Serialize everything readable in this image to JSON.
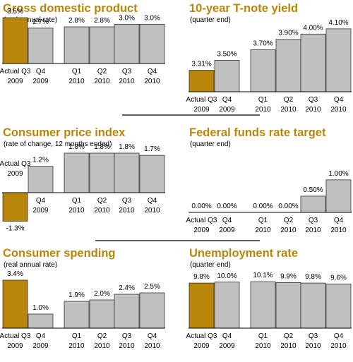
{
  "colors": {
    "actual": "#b8860b",
    "projected": "#c0c0c0",
    "title": "#b8860b"
  },
  "chart_data": [
    {
      "type": "bar",
      "title": "Gross domestic product",
      "subtitle": "(real annual rate)",
      "categories": [
        "Actual Q3 2009",
        "Q4 2009",
        "Q1 2010",
        "Q2 2010",
        "Q3 2010",
        "Q4 2010"
      ],
      "x_tick_line1": [
        "Actual Q3",
        "Q4",
        "Q1",
        "Q2",
        "Q3",
        "Q4"
      ],
      "x_tick_line2": [
        "2009",
        "2009",
        "2010",
        "2010",
        "2010",
        "2010"
      ],
      "values": [
        3.5,
        2.7,
        2.8,
        2.8,
        3.0,
        3.0
      ],
      "value_labels": [
        "3.5%",
        "2.7%",
        "2.8%",
        "2.8%",
        "3.0%",
        "3.0%"
      ],
      "ylim": [
        0,
        4.2
      ]
    },
    {
      "type": "bar",
      "title": "10-year T-note yield",
      "subtitle": "(quarter end)",
      "categories": [
        "Actual Q3 2009",
        "Q4 2009",
        "Q1 2010",
        "Q2 2010",
        "Q3 2010",
        "Q4 2010"
      ],
      "x_tick_line1": [
        "Actual Q3",
        "Q4",
        "Q1",
        "Q2",
        "Q3",
        "Q4"
      ],
      "x_tick_line2": [
        "2009",
        "2009",
        "2010",
        "2010",
        "2010",
        "2010"
      ],
      "values": [
        3.31,
        3.5,
        3.7,
        3.9,
        4.0,
        4.1
      ],
      "value_labels": [
        "3.31%",
        "3.50%",
        "3.70%",
        "3.90%",
        "4.00%",
        "4.10%"
      ],
      "ylim": [
        2.9,
        4.3
      ]
    },
    {
      "type": "bar",
      "title": "Consumer price index",
      "subtitle": "(rate of change, 12 months ended)",
      "categories": [
        "Actual Q3 2009",
        "Q4 2009",
        "Q1 2010",
        "Q2 2010",
        "Q3 2010",
        "Q4 2010"
      ],
      "x_tick_line1": [
        "Actual Q3",
        "Q4",
        "Q1",
        "Q2",
        "Q3",
        "Q4"
      ],
      "x_tick_line2": [
        "2009",
        "2009",
        "2010",
        "2010",
        "2010",
        "2010"
      ],
      "values": [
        -1.3,
        1.2,
        1.8,
        1.8,
        1.8,
        1.7
      ],
      "value_labels": [
        "-1.3%",
        "1.2%",
        "1.8%",
        "1.8%",
        "1.8%",
        "1.7%"
      ],
      "ylim": [
        -1.4,
        2.1
      ]
    },
    {
      "type": "bar",
      "title": "Federal funds rate target",
      "subtitle": "(quarter end)",
      "categories": [
        "Actual Q3 2009",
        "Q4 2009",
        "Q1 2010",
        "Q2 2010",
        "Q3 2010",
        "Q4 2010"
      ],
      "x_tick_line1": [
        "Actual Q3",
        "Q4",
        "Q1",
        "Q2",
        "Q3",
        "Q4"
      ],
      "x_tick_line2": [
        "2009",
        "2009",
        "2010",
        "2010",
        "2010",
        "2010"
      ],
      "values": [
        0.0,
        0.0,
        0.0,
        0.0,
        0.5,
        1.0
      ],
      "value_labels": [
        "0.00%",
        "0.00%",
        "0.00%",
        "0.00%",
        "0.50%",
        "1.00%"
      ],
      "ylim": [
        0,
        1.3
      ]
    },
    {
      "type": "bar",
      "title": "Consumer spending",
      "subtitle": "(real annual rate)",
      "categories": [
        "Actual Q3 2009",
        "Q4 2009",
        "Q1 2010",
        "Q2 2010",
        "Q3 2010",
        "Q4 2010"
      ],
      "x_tick_line1": [
        "Actual Q3",
        "Q4",
        "Q1",
        "Q2",
        "Q3",
        "Q4"
      ],
      "x_tick_line2": [
        "2009",
        "2009",
        "2010",
        "2010",
        "2010",
        "2010"
      ],
      "values": [
        3.4,
        1.0,
        1.9,
        2.0,
        2.4,
        2.5
      ],
      "value_labels": [
        "3.4%",
        "1.0%",
        "1.9%",
        "2.0%",
        "2.4%",
        "2.5%"
      ],
      "ylim": [
        0,
        4.0
      ]
    },
    {
      "type": "bar",
      "title": "Unemployment rate",
      "subtitle": "(quarter end)",
      "categories": [
        "Actual Q3 2009",
        "Q4 2009",
        "Q1 2010",
        "Q2 2010",
        "Q3 2010",
        "Q4 2010"
      ],
      "x_tick_line1": [
        "Actual Q3",
        "Q4",
        "Q1",
        "Q2",
        "Q3",
        "Q4"
      ],
      "x_tick_line2": [
        "2009",
        "2009",
        "2010",
        "2010",
        "2010",
        "2010"
      ],
      "values": [
        9.8,
        10.0,
        10.1,
        9.9,
        9.8,
        9.6
      ],
      "value_labels": [
        "9.8%",
        "10.0%",
        "10.1%",
        "9.9%",
        "9.8%",
        "9.6%"
      ],
      "ylim": [
        0,
        11.5
      ]
    }
  ]
}
